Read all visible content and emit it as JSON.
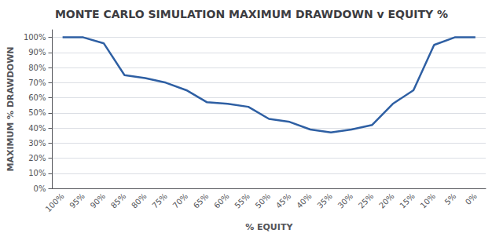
{
  "chart_data": {
    "type": "line",
    "title": "MONTE CARLO SIMULATION MAXIMUM DRAWDOWN v EQUITY %",
    "xlabel": "% EQUITY",
    "ylabel": "MAXIMUM % DRAWDOWN",
    "categories": [
      "100%",
      "95%",
      "90%",
      "85%",
      "80%",
      "75%",
      "70%",
      "65%",
      "60%",
      "55%",
      "50%",
      "45%",
      "40%",
      "35%",
      "30%",
      "25%",
      "20%",
      "15%",
      "10%",
      "5%",
      "0%"
    ],
    "values": [
      100,
      100,
      96,
      75,
      73,
      70,
      65,
      57,
      56,
      54,
      46,
      44,
      39,
      37,
      39,
      42,
      56,
      65,
      95,
      100,
      100
    ],
    "color": "#2E5FA3",
    "ylim": [
      0,
      105
    ],
    "yticks": [
      {
        "value": 0,
        "label": "0%"
      },
      {
        "value": 10,
        "label": "10%"
      },
      {
        "value": 20,
        "label": "20%"
      },
      {
        "value": 30,
        "label": "30%"
      },
      {
        "value": 40,
        "label": "40%"
      },
      {
        "value": 50,
        "label": "50%"
      },
      {
        "value": 60,
        "label": "60%"
      },
      {
        "value": 70,
        "label": "70%"
      },
      {
        "value": 80,
        "label": "80%"
      },
      {
        "value": 90,
        "label": "90%"
      },
      {
        "value": 100,
        "label": "100%"
      }
    ],
    "grid": true
  }
}
